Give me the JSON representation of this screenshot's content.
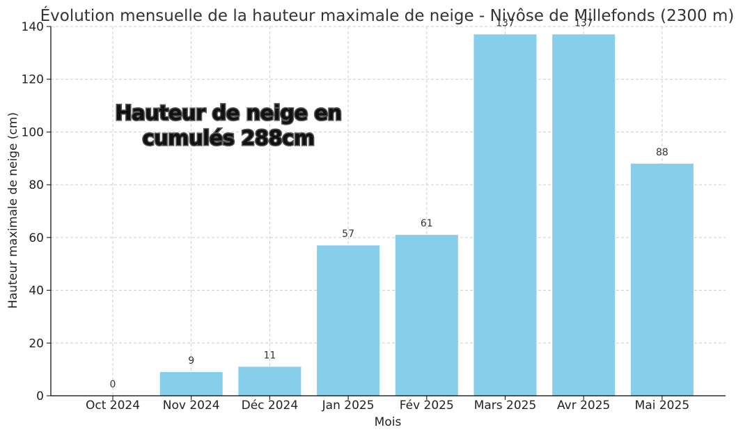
{
  "chart_data": {
    "type": "bar",
    "title": "Évolution mensuelle de la hauteur maximale de neige - Nivôse de Millefonds (2300 m)",
    "xlabel": "Mois",
    "ylabel": "Hauteur maximale de neige (cm)",
    "categories": [
      "Oct 2024",
      "Nov 2024",
      "Déc 2024",
      "Jan 2025",
      "Fév 2025",
      "Mars 2025",
      "Avr 2025",
      "Mai 2025"
    ],
    "values": [
      0,
      9,
      11,
      57,
      61,
      137,
      137,
      88
    ],
    "ylim": [
      0,
      140
    ],
    "yticks": [
      0,
      20,
      40,
      60,
      80,
      100,
      120,
      140
    ],
    "grid": true,
    "bar_color": "#87ceeb",
    "annotation": {
      "lines": [
        "Hauteur de neige en",
        "cumulés 288cm"
      ]
    }
  }
}
